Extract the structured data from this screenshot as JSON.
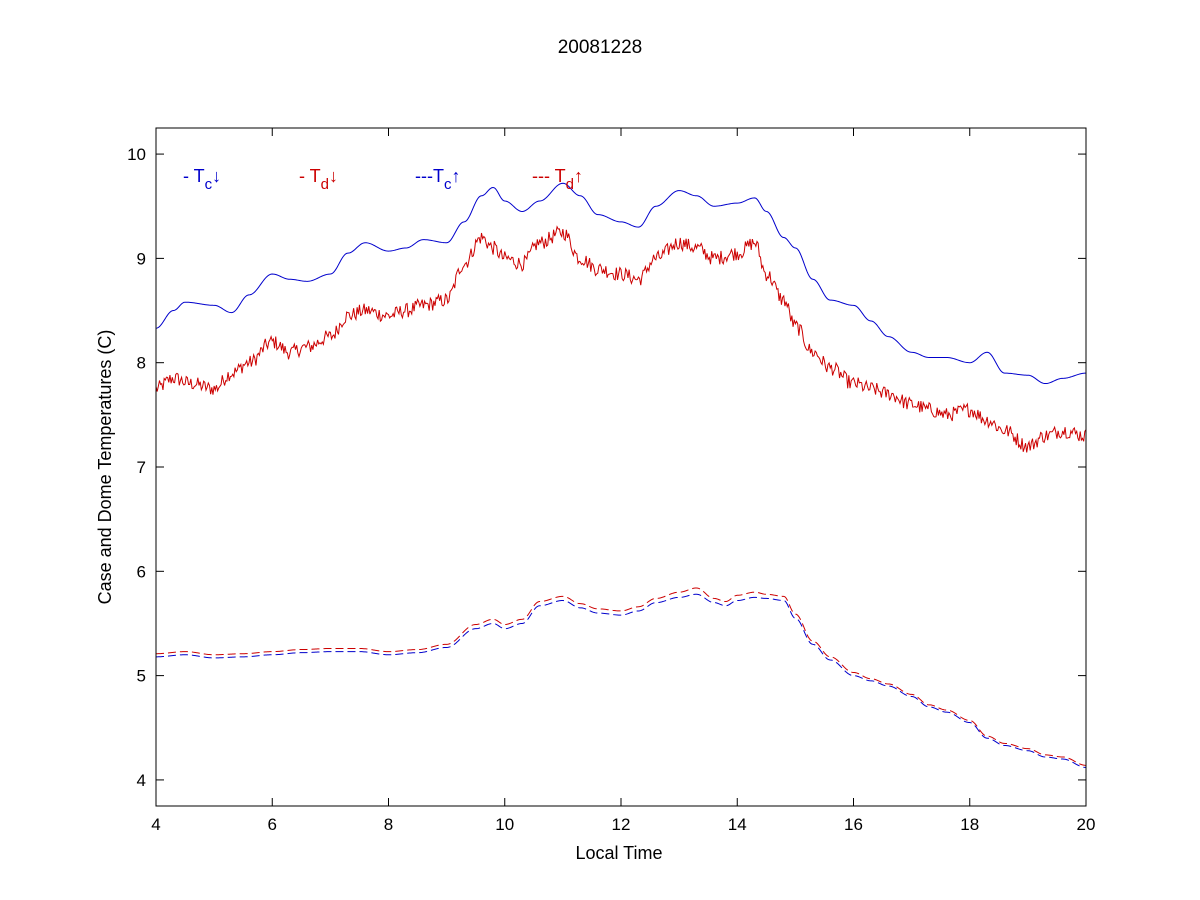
{
  "chart_data": {
    "type": "line",
    "title": "20081228",
    "xlabel": "Local Time",
    "ylabel": "Case and Dome Temperatures (C)",
    "xlim": [
      4,
      20
    ],
    "ylim": [
      3.75,
      10.25
    ],
    "xticks": [
      4,
      6,
      8,
      10,
      12,
      14,
      16,
      18,
      20
    ],
    "yticks": [
      4,
      5,
      6,
      7,
      8,
      9,
      10
    ],
    "grid": false,
    "legend_position": "top-left inside, horizontal",
    "colors": {
      "blue": "#0000cc",
      "red": "#cc0000"
    },
    "legend": [
      {
        "prefix": "- T",
        "sub": "c",
        "arrow": "↓",
        "color": "#0000cc"
      },
      {
        "prefix": "- T",
        "sub": "d",
        "arrow": "↓",
        "color": "#cc0000"
      },
      {
        "prefix": "---T",
        "sub": "c",
        "arrow": "↑",
        "color": "#0000cc"
      },
      {
        "prefix": "--- T",
        "sub": "d",
        "arrow": "↑",
        "color": "#cc0000"
      }
    ],
    "series": [
      {
        "color": "#0000cc",
        "dash": "solid",
        "noise": 0.0,
        "x": [
          4.0,
          4.3,
          4.5,
          5.0,
          5.3,
          5.6,
          6.0,
          6.3,
          6.6,
          7.0,
          7.3,
          7.6,
          8.0,
          8.3,
          8.6,
          9.0,
          9.3,
          9.6,
          9.8,
          10.0,
          10.3,
          10.6,
          11.0,
          11.3,
          11.6,
          12.0,
          12.3,
          12.6,
          13.0,
          13.3,
          13.6,
          14.0,
          14.3,
          14.5,
          14.8,
          15.0,
          15.3,
          15.6,
          16.0,
          16.3,
          16.6,
          17.0,
          17.3,
          17.6,
          18.0,
          18.3,
          18.6,
          19.0,
          19.3,
          19.6,
          20.0
        ],
        "y": [
          8.33,
          8.5,
          8.58,
          8.55,
          8.48,
          8.65,
          8.85,
          8.8,
          8.78,
          8.85,
          9.05,
          9.15,
          9.07,
          9.1,
          9.18,
          9.15,
          9.35,
          9.6,
          9.68,
          9.55,
          9.45,
          9.55,
          9.72,
          9.6,
          9.42,
          9.35,
          9.3,
          9.5,
          9.65,
          9.6,
          9.5,
          9.53,
          9.58,
          9.45,
          9.2,
          9.1,
          8.8,
          8.6,
          8.55,
          8.4,
          8.25,
          8.1,
          8.05,
          8.05,
          8.0,
          8.1,
          7.9,
          7.88,
          7.8,
          7.85,
          7.9
        ]
      },
      {
        "color": "#cc0000",
        "dash": "solid",
        "noise": 0.07,
        "x": [
          4.0,
          4.3,
          4.6,
          5.0,
          5.3,
          5.6,
          6.0,
          6.3,
          6.6,
          7.0,
          7.3,
          7.6,
          8.0,
          8.3,
          8.6,
          9.0,
          9.3,
          9.6,
          9.8,
          10.0,
          10.3,
          10.6,
          11.0,
          11.3,
          11.6,
          12.0,
          12.3,
          12.6,
          13.0,
          13.3,
          13.6,
          14.0,
          14.3,
          14.5,
          14.8,
          15.0,
          15.3,
          15.6,
          16.0,
          16.3,
          16.6,
          17.0,
          17.3,
          17.6,
          18.0,
          18.3,
          18.6,
          19.0,
          19.3,
          19.6,
          20.0
        ],
        "y": [
          7.75,
          7.85,
          7.8,
          7.75,
          7.9,
          8.0,
          8.2,
          8.1,
          8.15,
          8.25,
          8.45,
          8.5,
          8.45,
          8.5,
          8.55,
          8.6,
          8.95,
          9.2,
          9.1,
          9.0,
          8.95,
          9.15,
          9.25,
          9.0,
          8.9,
          8.85,
          8.8,
          9.0,
          9.15,
          9.1,
          9.0,
          9.05,
          9.15,
          8.85,
          8.6,
          8.35,
          8.1,
          7.95,
          7.8,
          7.75,
          7.7,
          7.6,
          7.55,
          7.5,
          7.55,
          7.45,
          7.35,
          7.2,
          7.3,
          7.35,
          7.3
        ]
      },
      {
        "color": "#0000cc",
        "dash": "dashed",
        "noise": 0.0,
        "x": [
          4.0,
          4.5,
          5.0,
          5.5,
          6.0,
          6.5,
          7.0,
          7.5,
          8.0,
          8.5,
          9.0,
          9.5,
          9.8,
          10.0,
          10.3,
          10.6,
          11.0,
          11.3,
          11.6,
          12.0,
          12.3,
          12.6,
          13.0,
          13.3,
          13.6,
          13.8,
          14.0,
          14.3,
          14.5,
          14.8,
          15.0,
          15.3,
          15.6,
          16.0,
          16.3,
          16.6,
          17.0,
          17.3,
          17.6,
          18.0,
          18.3,
          18.6,
          19.0,
          19.3,
          19.6,
          20.0
        ],
        "y": [
          5.18,
          5.2,
          5.17,
          5.18,
          5.2,
          5.22,
          5.23,
          5.23,
          5.2,
          5.22,
          5.27,
          5.45,
          5.5,
          5.45,
          5.5,
          5.67,
          5.72,
          5.65,
          5.6,
          5.58,
          5.62,
          5.7,
          5.75,
          5.78,
          5.7,
          5.67,
          5.72,
          5.75,
          5.74,
          5.72,
          5.55,
          5.3,
          5.15,
          5.0,
          4.95,
          4.9,
          4.8,
          4.7,
          4.65,
          4.55,
          4.4,
          4.33,
          4.28,
          4.22,
          4.2,
          4.12
        ]
      },
      {
        "color": "#cc0000",
        "dash": "dashed",
        "noise": 0.0,
        "x": [
          4.0,
          4.5,
          5.0,
          5.5,
          6.0,
          6.5,
          7.0,
          7.5,
          8.0,
          8.5,
          9.0,
          9.5,
          9.8,
          10.0,
          10.3,
          10.6,
          11.0,
          11.3,
          11.6,
          12.0,
          12.3,
          12.6,
          13.0,
          13.3,
          13.6,
          13.8,
          14.0,
          14.3,
          14.5,
          14.8,
          15.0,
          15.3,
          15.6,
          16.0,
          16.3,
          16.6,
          17.0,
          17.3,
          17.6,
          18.0,
          18.3,
          18.6,
          19.0,
          19.3,
          19.6,
          20.0
        ],
        "y": [
          5.21,
          5.23,
          5.2,
          5.21,
          5.23,
          5.25,
          5.26,
          5.26,
          5.23,
          5.25,
          5.3,
          5.49,
          5.54,
          5.49,
          5.54,
          5.71,
          5.76,
          5.69,
          5.64,
          5.62,
          5.66,
          5.74,
          5.8,
          5.84,
          5.74,
          5.71,
          5.77,
          5.8,
          5.78,
          5.76,
          5.59,
          5.33,
          5.18,
          5.03,
          4.97,
          4.92,
          4.82,
          4.72,
          4.67,
          4.57,
          4.42,
          4.35,
          4.3,
          4.24,
          4.22,
          4.14
        ]
      }
    ]
  }
}
